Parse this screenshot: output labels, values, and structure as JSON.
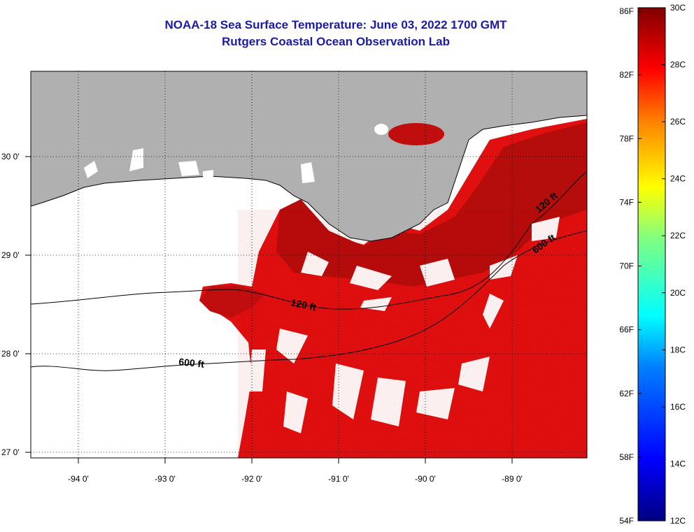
{
  "title": {
    "line1": "NOAA-18 Sea Surface Temperature:  June 03, 2022 1700 GMT",
    "line2": "Rutgers Coastal Ocean Observation Lab"
  },
  "map": {
    "lat_labels": [
      "30 0'",
      "29 0'",
      "28 0'",
      "27 0'"
    ],
    "lon_labels": [
      "-94 0'",
      "-93 0'",
      "-92 0'",
      "-91 0'",
      "-90 0'",
      "-89 0'"
    ],
    "contour_labels": [
      "120 ft",
      "600 ft",
      "120 ft",
      "600 ft"
    ],
    "colors": {
      "land": "#b0b0b0",
      "sst_main": "#e0100c",
      "sst_dark": "#b00a0a",
      "cloud": "#ffffff"
    }
  },
  "colorbar": {
    "f_labels": [
      "86F",
      "82F",
      "78F",
      "74F",
      "70F",
      "66F",
      "62F",
      "58F",
      "54F"
    ],
    "c_labels": [
      "30C",
      "28C",
      "26C",
      "24C",
      "22C",
      "20C",
      "18C",
      "16C",
      "14C",
      "12C"
    ],
    "range_c": [
      12,
      30
    ],
    "range_f": [
      54,
      86
    ]
  }
}
